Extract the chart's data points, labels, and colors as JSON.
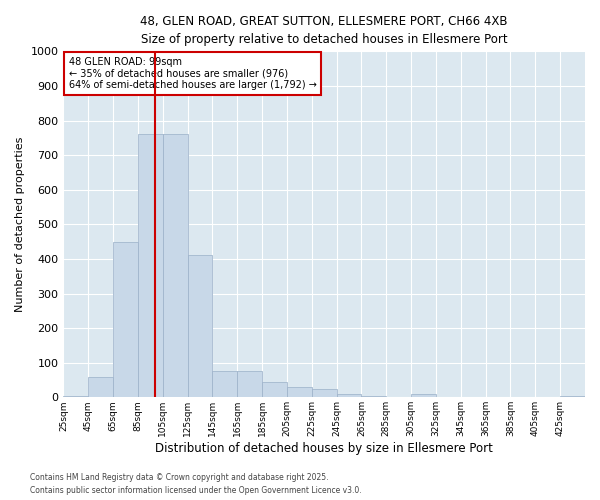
{
  "title1": "48, GLEN ROAD, GREAT SUTTON, ELLESMERE PORT, CH66 4XB",
  "title2": "Size of property relative to detached houses in Ellesmere Port",
  "xlabel": "Distribution of detached houses by size in Ellesmere Port",
  "ylabel": "Number of detached properties",
  "property_size": 99,
  "annotation_line1": "48 GLEN ROAD: 99sqm",
  "annotation_line2": "← 35% of detached houses are smaller (976)",
  "annotation_line3": "64% of semi-detached houses are larger (1,792) →",
  "footnote1": "Contains HM Land Registry data © Crown copyright and database right 2025.",
  "footnote2": "Contains public sector information licensed under the Open Government Licence v3.0.",
  "bin_edges": [
    25,
    45,
    65,
    85,
    105,
    125,
    145,
    165,
    185,
    205,
    225,
    245,
    265,
    285,
    305,
    325,
    345,
    365,
    385,
    405,
    425,
    445
  ],
  "bin_labels": [
    "25sqm",
    "45sqm",
    "65sqm",
    "85sqm",
    "105sqm",
    "125sqm",
    "145sqm",
    "165sqm",
    "185sqm",
    "205sqm",
    "225sqm",
    "245sqm",
    "265sqm",
    "285sqm",
    "305sqm",
    "325sqm",
    "345sqm",
    "365sqm",
    "385sqm",
    "405sqm",
    "425sqm"
  ],
  "counts": [
    5,
    60,
    450,
    760,
    760,
    410,
    75,
    75,
    45,
    30,
    25,
    10,
    5,
    0,
    10,
    0,
    0,
    0,
    0,
    0,
    5
  ],
  "bar_color": "#c8d8e8",
  "bar_edgecolor": "#9ab0c8",
  "redline_color": "#cc0000",
  "annotation_box_edgecolor": "#cc0000",
  "annotation_box_facecolor": "#ffffff",
  "background_color": "#dce8f0",
  "fig_background": "#ffffff",
  "ylim": [
    0,
    1000
  ],
  "yticks": [
    0,
    100,
    200,
    300,
    400,
    500,
    600,
    700,
    800,
    900,
    1000
  ]
}
